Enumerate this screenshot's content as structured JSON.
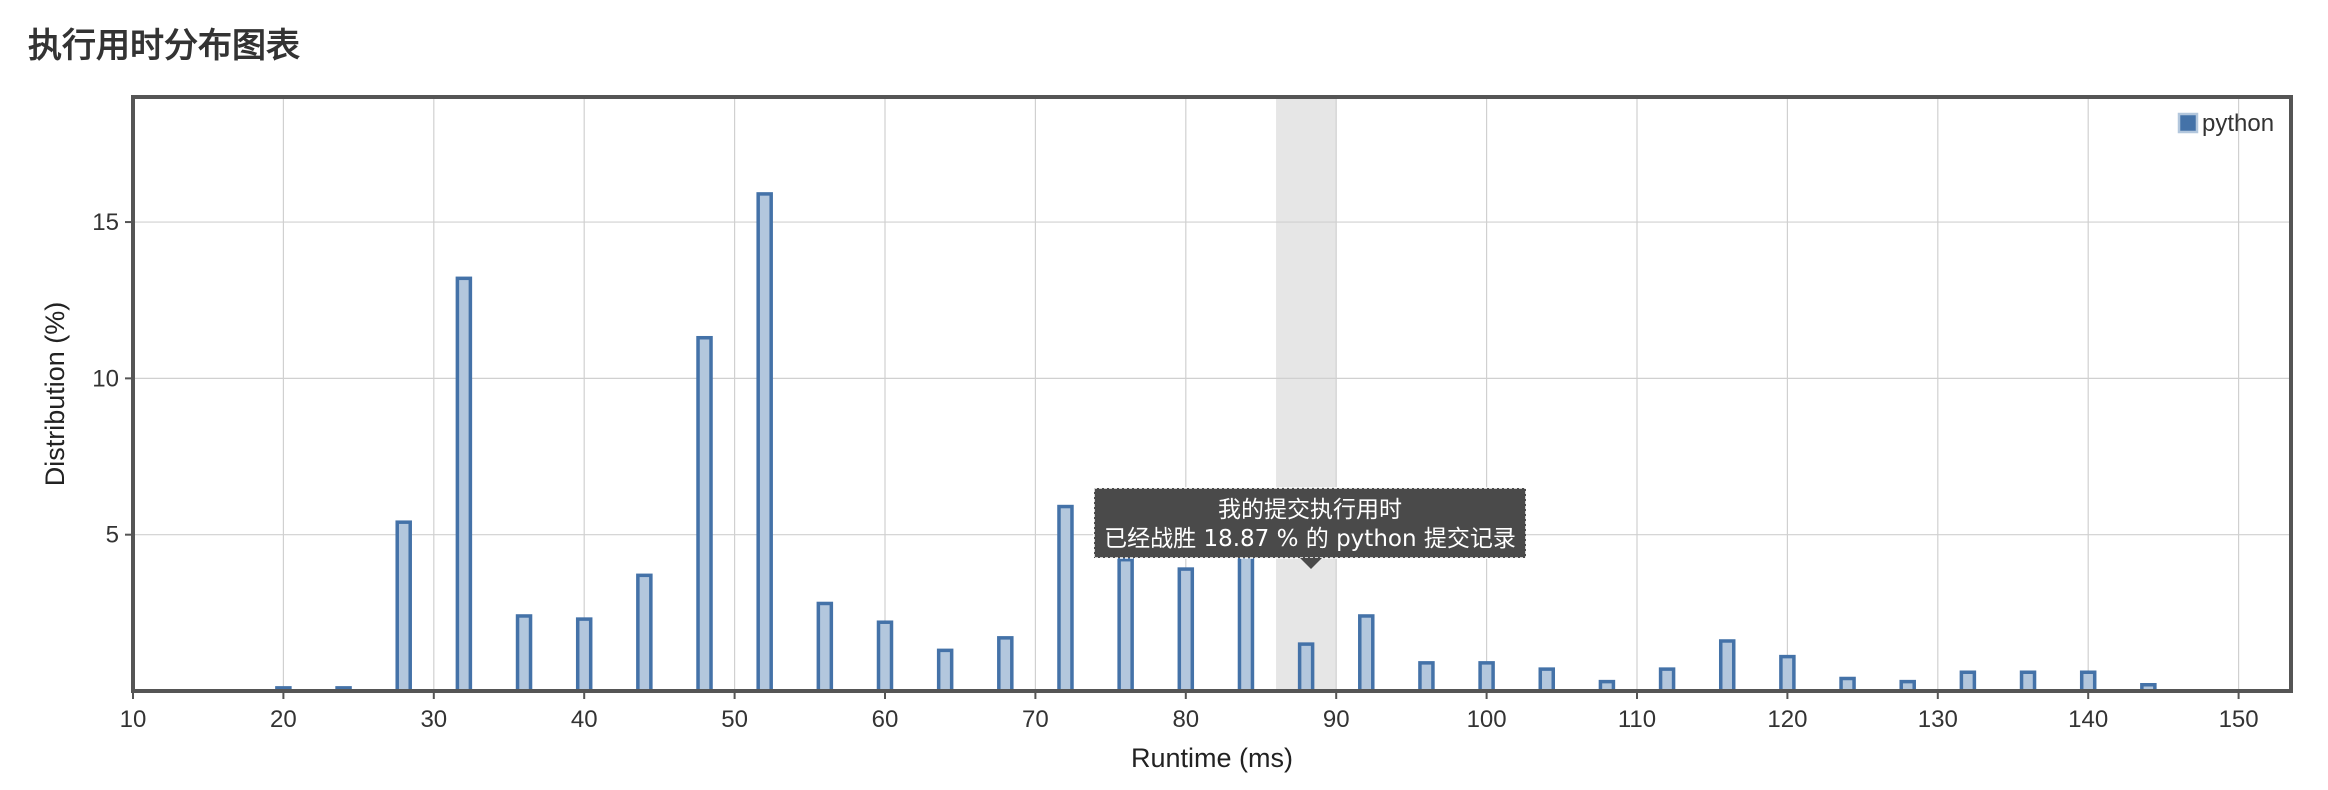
{
  "page": {
    "title": "执行用时分布图表"
  },
  "chart_data": {
    "type": "bar",
    "title": "",
    "xlabel": "Runtime (ms)",
    "ylabel": "Distribution (%)",
    "xlim": [
      10,
      154
    ],
    "ylim": [
      0,
      19
    ],
    "x_ticks": [
      "10",
      "20",
      "30",
      "40",
      "50",
      "60",
      "70",
      "80",
      "90",
      "100",
      "110",
      "120",
      "130",
      "140",
      "150"
    ],
    "y_ticks": [
      "5",
      "10",
      "15"
    ],
    "grid": true,
    "legend_position": "top-right",
    "highlight_range": [
      86,
      90
    ],
    "series": [
      {
        "name": "python",
        "color": "#4472a8",
        "fill": "#b3c7dd",
        "points": [
          {
            "x": 20,
            "y": 0.1
          },
          {
            "x": 24,
            "y": 0.1
          },
          {
            "x": 28,
            "y": 5.4
          },
          {
            "x": 32,
            "y": 13.2
          },
          {
            "x": 36,
            "y": 2.4
          },
          {
            "x": 40,
            "y": 2.3
          },
          {
            "x": 44,
            "y": 3.7
          },
          {
            "x": 48,
            "y": 11.3
          },
          {
            "x": 52,
            "y": 15.9
          },
          {
            "x": 56,
            "y": 2.8
          },
          {
            "x": 60,
            "y": 2.2
          },
          {
            "x": 64,
            "y": 1.3
          },
          {
            "x": 68,
            "y": 1.7
          },
          {
            "x": 72,
            "y": 5.9
          },
          {
            "x": 76,
            "y": 4.2
          },
          {
            "x": 80,
            "y": 3.9
          },
          {
            "x": 84,
            "y": 4.3
          },
          {
            "x": 88,
            "y": 1.5
          },
          {
            "x": 92,
            "y": 2.4
          },
          {
            "x": 96,
            "y": 0.9
          },
          {
            "x": 100,
            "y": 0.9
          },
          {
            "x": 104,
            "y": 0.7
          },
          {
            "x": 108,
            "y": 0.3
          },
          {
            "x": 112,
            "y": 0.7
          },
          {
            "x": 116,
            "y": 1.6
          },
          {
            "x": 120,
            "y": 1.1
          },
          {
            "x": 124,
            "y": 0.4
          },
          {
            "x": 128,
            "y": 0.3
          },
          {
            "x": 132,
            "y": 0.6
          },
          {
            "x": 136,
            "y": 0.6
          },
          {
            "x": 140,
            "y": 0.6
          },
          {
            "x": 144,
            "y": 0.2
          }
        ]
      }
    ],
    "tooltip": {
      "line1": "我的提交执行用时",
      "line2": "已经战胜 18.87 % 的 python 提交记录"
    }
  }
}
